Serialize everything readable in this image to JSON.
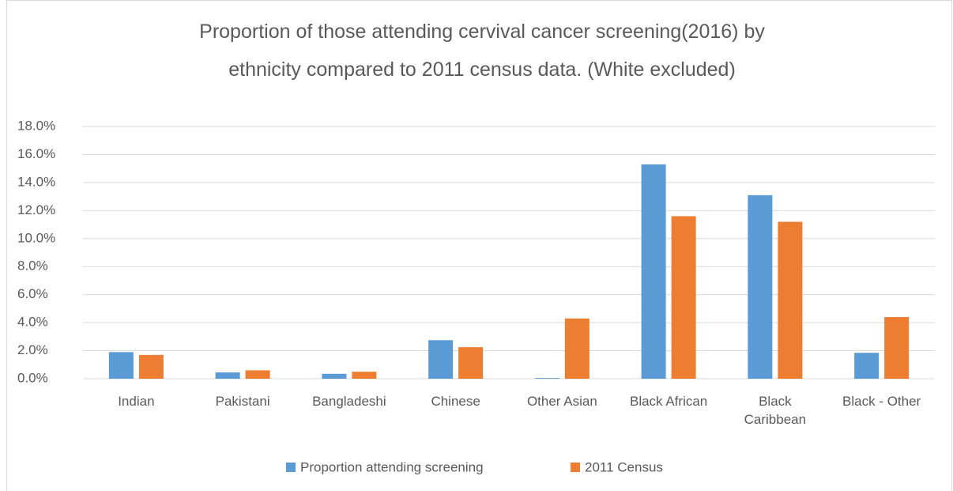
{
  "chart_data": {
    "type": "bar",
    "title": "Proportion of those attending cervival cancer screening(2016) by ethnicity compared to 2011 census data. (White excluded)",
    "categories": [
      "Indian",
      "Pakistani",
      "Bangladeshi",
      "Chinese",
      "Other Asian",
      "Black African",
      "Black Caribbean",
      "Black - Other"
    ],
    "series": [
      {
        "name": "Proportion attending screening",
        "color": "#5b9bd5",
        "values": [
          1.9,
          0.45,
          0.35,
          2.75,
          0.05,
          15.3,
          13.1,
          1.85
        ]
      },
      {
        "name": "2011 Census",
        "color": "#ed7d31",
        "values": [
          1.7,
          0.6,
          0.5,
          2.25,
          4.3,
          11.6,
          11.2,
          4.4
        ]
      }
    ],
    "ylim": [
      0,
      18
    ],
    "yticks": [
      {
        "value": 0,
        "label": "0.0%"
      },
      {
        "value": 2,
        "label": "2.0%"
      },
      {
        "value": 4,
        "label": "4.0%"
      },
      {
        "value": 6,
        "label": "6.0%"
      },
      {
        "value": 8,
        "label": "8.0%"
      },
      {
        "value": 10,
        "label": "10.0%"
      },
      {
        "value": 12,
        "label": "12.0%"
      },
      {
        "value": 14,
        "label": "14.0%"
      },
      {
        "value": 16,
        "label": "16.0%"
      },
      {
        "value": 18,
        "label": "18.0%"
      }
    ],
    "grid": true,
    "legend": "bottom"
  }
}
